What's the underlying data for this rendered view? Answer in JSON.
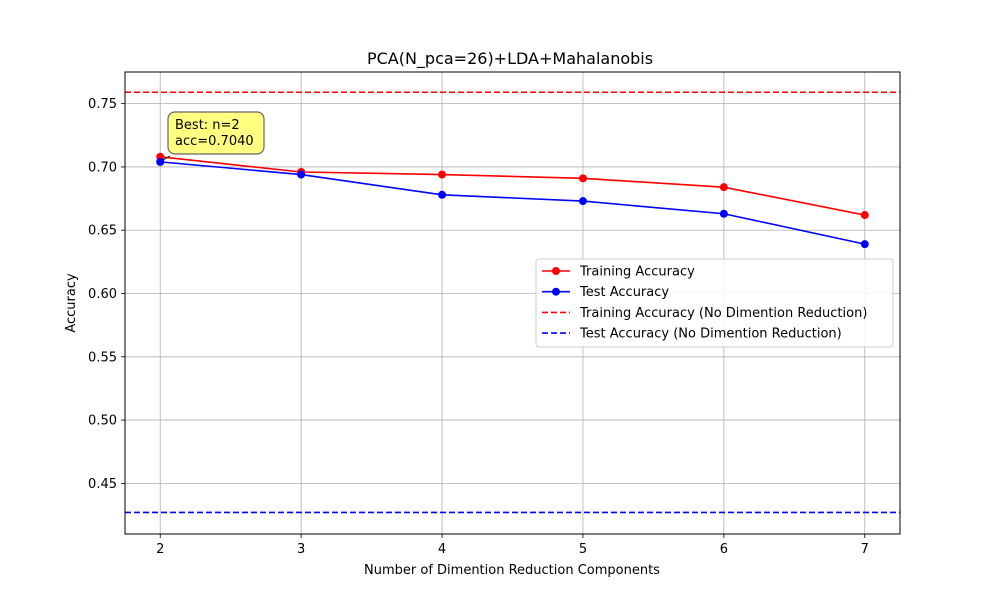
{
  "chart_data": {
    "type": "line",
    "title": "PCA(N_pca=26)+LDA+Mahalanobis",
    "xlabel": "Number of Dimention Reduction Components",
    "ylabel": "Accuracy",
    "x": [
      2,
      3,
      4,
      5,
      6,
      7
    ],
    "xlim": [
      1.75,
      7.25
    ],
    "ylim": [
      0.41,
      0.775
    ],
    "xticks": [
      "2",
      "3",
      "4",
      "5",
      "6",
      "7"
    ],
    "yticks": [
      "0.45",
      "0.50",
      "0.55",
      "0.60",
      "0.65",
      "0.70",
      "0.75"
    ],
    "grid": true,
    "legend_position": "center-right",
    "series": [
      {
        "name": "Training Accuracy",
        "color": "#ff0000",
        "style": "line-marker",
        "values": [
          0.708,
          0.696,
          0.694,
          0.691,
          0.684,
          0.662
        ]
      },
      {
        "name": "Test Accuracy",
        "color": "#0000ff",
        "style": "line-marker",
        "values": [
          0.704,
          0.694,
          0.678,
          0.673,
          0.663,
          0.639
        ]
      },
      {
        "name": "Training Accuracy (No Dimention Reduction)",
        "color": "#ff0000",
        "style": "dashed-hline",
        "value": 0.759
      },
      {
        "name": "Test Accuracy (No Dimention Reduction)",
        "color": "#0000ff",
        "style": "dashed-hline",
        "value": 0.427
      }
    ],
    "annotation": {
      "lines": [
        "Best: n=2",
        "acc=0.7040"
      ],
      "x": 2,
      "y": 0.704,
      "box_color": "#ffff80"
    }
  }
}
